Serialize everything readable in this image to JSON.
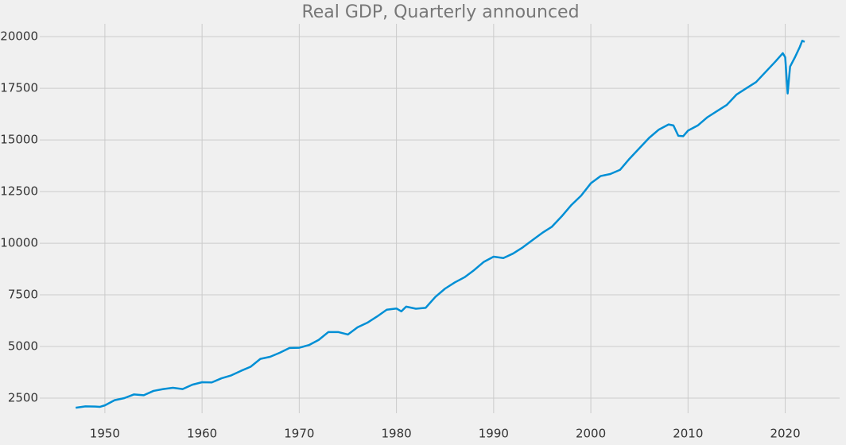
{
  "chart_data": {
    "type": "line",
    "title": "Real GDP, Quarterly announced",
    "x": [
      1947,
      1948,
      1949,
      1949.5,
      1950,
      1951,
      1952,
      1953,
      1954,
      1955,
      1956,
      1957,
      1958,
      1959,
      1960,
      1961,
      1962,
      1963,
      1964,
      1965,
      1966,
      1967,
      1968,
      1969,
      1970,
      1971,
      1972,
      1973,
      1974,
      1975,
      1976,
      1977,
      1978,
      1979,
      1980,
      1980.5,
      1981,
      1982,
      1983,
      1984,
      1985,
      1986,
      1987,
      1988,
      1989,
      1990,
      1991,
      1992,
      1993,
      1994,
      1995,
      1996,
      1997,
      1998,
      1999,
      2000,
      2001,
      2002,
      2003,
      2004,
      2005,
      2006,
      2007,
      2008,
      2008.5,
      2009,
      2009.5,
      2010,
      2011,
      2012,
      2013,
      2014,
      2015,
      2016,
      2017,
      2018,
      2019,
      2019.75,
      2020,
      2020.25,
      2020.5,
      2021,
      2021.5,
      2021.75,
      2022
    ],
    "series": [
      {
        "name": "Real GDP",
        "color": "#008fd5",
        "values": [
          2034,
          2100,
          2090,
          2080,
          2150,
          2400,
          2500,
          2680,
          2640,
          2850,
          2940,
          3000,
          2940,
          3150,
          3270,
          3260,
          3460,
          3600,
          3820,
          4020,
          4400,
          4500,
          4700,
          4930,
          4940,
          5070,
          5320,
          5700,
          5700,
          5580,
          5930,
          6150,
          6450,
          6780,
          6840,
          6700,
          6930,
          6830,
          6870,
          7400,
          7800,
          8100,
          8350,
          8700,
          9100,
          9350,
          9280,
          9500,
          9800,
          10150,
          10500,
          10800,
          11300,
          11850,
          12300,
          12900,
          13250,
          13350,
          13550,
          14100,
          14600,
          15100,
          15500,
          15750,
          15700,
          15200,
          15180,
          15450,
          15700,
          16100,
          16400,
          16700,
          17200,
          17500,
          17800,
          18300,
          18800,
          19200,
          19000,
          17250,
          18550,
          19000,
          19500,
          19800,
          19750
        ]
      }
    ],
    "xlim": [
      1943.3,
      2025.6
    ],
    "xticks": [
      1950,
      1960,
      1970,
      1980,
      1990,
      2000,
      2010,
      2020
    ],
    "ylim": [
      1770,
      20620
    ],
    "yticks": [
      2500,
      5000,
      7500,
      10000,
      12500,
      15000,
      17500,
      20000
    ],
    "grid": true
  }
}
